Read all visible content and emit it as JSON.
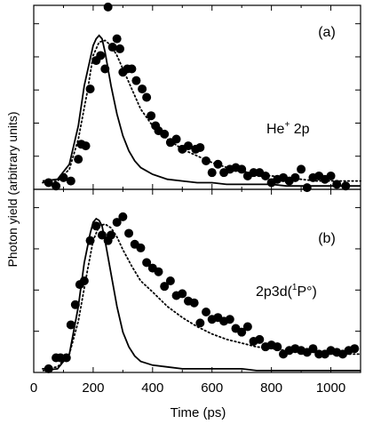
{
  "figure": {
    "ylabel": "Photon yield (arbitrary units)",
    "xlabel": "Time (ps)",
    "x_ticks": [
      0,
      200,
      400,
      600,
      800,
      1000
    ],
    "xlim": [
      0,
      1100
    ]
  },
  "chart_data": [
    {
      "type": "scatter",
      "panel": "(a)",
      "annotation": {
        "base": "He",
        "superscript": "+",
        "suffix": " 2p"
      },
      "xlabel": "Time (ps)",
      "ylabel": "Photon yield (arbitrary units)",
      "xlim": [
        0,
        1100
      ],
      "ylim": [
        0,
        1.1
      ],
      "y_tick_count": 6,
      "series": [
        {
          "style": "filled-circles",
          "x": [
            50,
            75,
            100,
            125,
            150,
            160,
            175,
            190,
            210,
            225,
            240,
            250,
            265,
            280,
            290,
            300,
            315,
            330,
            345,
            365,
            380,
            395,
            410,
            420,
            440,
            460,
            480,
            500,
            520,
            545,
            560,
            580,
            600,
            620,
            640,
            660,
            680,
            700,
            720,
            740,
            760,
            780,
            800,
            820,
            840,
            860,
            880,
            900,
            920,
            940,
            960,
            980,
            1000,
            1020,
            1050
          ],
          "y": [
            0.04,
            0.02,
            0.07,
            0.05,
            0.18,
            0.27,
            0.26,
            0.6,
            0.77,
            0.8,
            0.72,
            1.09,
            0.85,
            0.9,
            0.84,
            0.7,
            0.72,
            0.72,
            0.65,
            0.6,
            0.55,
            0.44,
            0.38,
            0.35,
            0.33,
            0.28,
            0.3,
            0.24,
            0.26,
            0.24,
            0.25,
            0.17,
            0.1,
            0.15,
            0.1,
            0.12,
            0.13,
            0.12,
            0.08,
            0.1,
            0.1,
            0.08,
            0.04,
            0.06,
            0.07,
            0.05,
            0.07,
            0.12,
            0.01,
            0.07,
            0.08,
            0.06,
            0.08,
            0.03,
            0.02
          ]
        },
        {
          "style": "dotted-line",
          "x": [
            30,
            80,
            120,
            150,
            180,
            200,
            220,
            240,
            260,
            280,
            300,
            330,
            360,
            400,
            450,
            500,
            550,
            600,
            650,
            700,
            750,
            800,
            850,
            900,
            950,
            1000,
            1050,
            1100
          ],
          "y": [
            0.04,
            0.05,
            0.12,
            0.3,
            0.58,
            0.8,
            0.88,
            0.89,
            0.86,
            0.8,
            0.72,
            0.6,
            0.48,
            0.38,
            0.3,
            0.24,
            0.2,
            0.16,
            0.13,
            0.11,
            0.09,
            0.08,
            0.07,
            0.06,
            0.05,
            0.05,
            0.05,
            0.05
          ]
        },
        {
          "style": "solid-line",
          "x": [
            30,
            80,
            120,
            150,
            170,
            190,
            200,
            210,
            220,
            230,
            240,
            260,
            280,
            300,
            320,
            340,
            360,
            380,
            400,
            450,
            500,
            550,
            600,
            650,
            700,
            750,
            800,
            850,
            900,
            950,
            1000,
            1050,
            1100
          ],
          "y": [
            0.05,
            0.06,
            0.15,
            0.38,
            0.62,
            0.78,
            0.86,
            0.9,
            0.92,
            0.9,
            0.82,
            0.62,
            0.45,
            0.32,
            0.23,
            0.17,
            0.13,
            0.11,
            0.09,
            0.06,
            0.05,
            0.04,
            0.04,
            0.03,
            0.03,
            0.03,
            0.03,
            0.02,
            0.02,
            0.02,
            0.02,
            0.02,
            0.02
          ]
        }
      ]
    },
    {
      "type": "scatter",
      "panel": "(b)",
      "annotation": {
        "base": "2p3d(",
        "superscript": "1",
        "suffix": "P°)"
      },
      "xlabel": "Time (ps)",
      "ylabel": "Photon yield (arbitrary units)",
      "xlim": [
        0,
        1100
      ],
      "ylim": [
        0,
        1.0
      ],
      "y_tick_count": 5,
      "series": [
        {
          "style": "filled-circles",
          "x": [
            50,
            75,
            90,
            110,
            125,
            140,
            155,
            170,
            190,
            210,
            230,
            250,
            260,
            280,
            300,
            320,
            340,
            360,
            380,
            400,
            420,
            440,
            460,
            480,
            500,
            520,
            540,
            560,
            580,
            600,
            620,
            640,
            660,
            680,
            700,
            720,
            740,
            760,
            780,
            800,
            820,
            840,
            860,
            880,
            900,
            920,
            940,
            960,
            980,
            1000,
            1020,
            1040,
            1060,
            1080
          ],
          "y": [
            0.02,
            0.08,
            0.08,
            0.08,
            0.26,
            0.37,
            0.48,
            0.5,
            0.72,
            0.8,
            0.75,
            0.72,
            0.75,
            0.82,
            0.85,
            0.76,
            0.7,
            0.68,
            0.6,
            0.57,
            0.55,
            0.47,
            0.5,
            0.42,
            0.43,
            0.39,
            0.38,
            0.27,
            0.33,
            0.29,
            0.3,
            0.28,
            0.29,
            0.24,
            0.22,
            0.25,
            0.17,
            0.18,
            0.14,
            0.15,
            0.14,
            0.1,
            0.12,
            0.13,
            0.12,
            0.11,
            0.13,
            0.1,
            0.1,
            0.12,
            0.11,
            0.1,
            0.12,
            0.13
          ]
        },
        {
          "style": "dotted-line",
          "x": [
            30,
            80,
            120,
            150,
            180,
            200,
            220,
            240,
            260,
            280,
            300,
            330,
            360,
            400,
            450,
            500,
            550,
            600,
            650,
            700,
            750,
            800,
            850,
            900,
            950,
            1000,
            1050,
            1100
          ],
          "y": [
            0.02,
            0.03,
            0.1,
            0.28,
            0.55,
            0.72,
            0.8,
            0.81,
            0.79,
            0.74,
            0.67,
            0.58,
            0.5,
            0.44,
            0.36,
            0.3,
            0.25,
            0.21,
            0.18,
            0.16,
            0.14,
            0.13,
            0.12,
            0.11,
            0.11,
            0.1,
            0.1,
            0.1
          ]
        },
        {
          "style": "solid-line",
          "x": [
            30,
            80,
            120,
            150,
            170,
            190,
            200,
            210,
            220,
            230,
            240,
            260,
            280,
            300,
            320,
            340,
            360,
            380,
            400,
            450,
            500,
            550,
            600,
            650,
            700,
            750,
            800,
            850,
            900,
            950,
            1000,
            1050,
            1100
          ],
          "y": [
            0.01,
            0.02,
            0.1,
            0.36,
            0.6,
            0.76,
            0.82,
            0.84,
            0.83,
            0.8,
            0.72,
            0.54,
            0.36,
            0.22,
            0.14,
            0.09,
            0.06,
            0.05,
            0.04,
            0.03,
            0.02,
            0.02,
            0.02,
            0.02,
            0.02,
            0.01,
            0.01,
            0.01,
            0.01,
            0.01,
            0.01,
            0.01,
            0.01
          ]
        }
      ]
    }
  ]
}
